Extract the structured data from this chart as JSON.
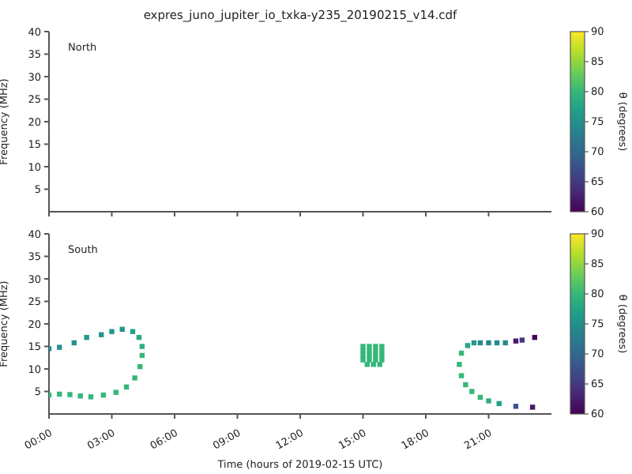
{
  "chart_data": [
    {
      "type": "scatter",
      "title": "expres_juno_jupiter_io_txka-y235_20190215_v14.cdf",
      "ylabel": "Frequency (MHz)",
      "annotations": [
        "North"
      ],
      "marker": "square",
      "xlim": [
        0,
        24
      ],
      "xticks": [
        {
          "value": 0,
          "label": null
        },
        {
          "value": 3,
          "label": null
        },
        {
          "value": 6,
          "label": null
        },
        {
          "value": 9,
          "label": null
        },
        {
          "value": 12,
          "label": null
        },
        {
          "value": 15,
          "label": null
        },
        {
          "value": 18,
          "label": null
        },
        {
          "value": 21,
          "label": null
        }
      ],
      "ylim": [
        0,
        40
      ],
      "yticks": [
        5,
        10,
        15,
        20,
        25,
        30,
        35,
        40
      ],
      "tick_labels": "y",
      "clabel": "θ (degrees)",
      "clim": [
        60,
        90
      ],
      "cticks": [
        60,
        65,
        70,
        75,
        80,
        85,
        90
      ]
    },
    {
      "type": "scatter",
      "xlabel": "Time (hours of 2019-02-15 UTC)",
      "ylabel": "Frequency (MHz)",
      "annotations": [
        "South"
      ],
      "marker": "square",
      "x": [
        0,
        0.5,
        1.2,
        1.8,
        2.5,
        3.0,
        3.5,
        4.0,
        4.3,
        4.45,
        4.45,
        4.35,
        4.1,
        3.7,
        3.2,
        2.6,
        2.0,
        1.5,
        1.0,
        0.5,
        0,
        15.0,
        15.3,
        15.6,
        15.9,
        15.0,
        15.3,
        15.6,
        15.9,
        15.0,
        15.3,
        15.6,
        15.9,
        15.0,
        15.3,
        15.6,
        15.9,
        15.2,
        15.5,
        15.8,
        20.3,
        20.0,
        19.7,
        19.6,
        19.7,
        19.9,
        20.2,
        20.6,
        21.0,
        21.5,
        22.3,
        23.1,
        20.6,
        21.0,
        21.4,
        21.8,
        22.3,
        22.6,
        23.2
      ],
      "values": [
        14.5,
        14.8,
        15.8,
        17,
        17.6,
        18.3,
        18.8,
        18.3,
        17,
        15,
        13,
        10.5,
        8,
        6,
        4.8,
        4.2,
        3.8,
        4.0,
        4.3,
        4.4,
        4.2,
        15,
        15,
        15,
        15,
        14,
        14,
        14,
        14,
        13,
        13,
        13,
        13,
        12,
        12,
        12,
        12,
        11,
        11,
        11,
        15.8,
        15.2,
        13.5,
        11,
        8.5,
        6.5,
        5,
        3.7,
        2.9,
        2.3,
        1.7,
        1.5,
        15.8,
        15.8,
        15.8,
        15.8,
        16.2,
        16.4,
        17.0
      ],
      "cvalues": [
        75,
        75,
        75,
        76,
        76,
        76,
        76,
        77,
        78,
        79,
        80,
        80,
        80,
        80,
        80,
        80,
        80,
        80,
        80,
        80,
        80,
        80,
        80,
        80,
        80,
        80,
        80,
        80,
        80,
        80,
        80,
        80,
        80,
        80,
        80,
        80,
        80,
        80,
        80,
        80,
        76,
        78,
        80,
        80,
        80,
        80,
        80,
        80,
        79,
        77,
        68,
        62,
        74,
        74,
        74,
        74,
        62,
        65,
        60
      ],
      "xlim": [
        0,
        24
      ],
      "xticks": [
        {
          "value": 0,
          "label": "00:00"
        },
        {
          "value": 3,
          "label": "03:00"
        },
        {
          "value": 6,
          "label": "06:00"
        },
        {
          "value": 9,
          "label": "09:00"
        },
        {
          "value": 12,
          "label": "12:00"
        },
        {
          "value": 15,
          "label": "15:00"
        },
        {
          "value": 18,
          "label": "18:00"
        },
        {
          "value": 21,
          "label": "21:00"
        }
      ],
      "ylim": [
        0,
        40
      ],
      "yticks": [
        5,
        10,
        15,
        20,
        25,
        30,
        35,
        40
      ],
      "clabel": "θ (degrees)",
      "clim": [
        60,
        90
      ],
      "cticks": [
        60,
        65,
        70,
        75,
        80,
        85,
        90
      ]
    }
  ]
}
